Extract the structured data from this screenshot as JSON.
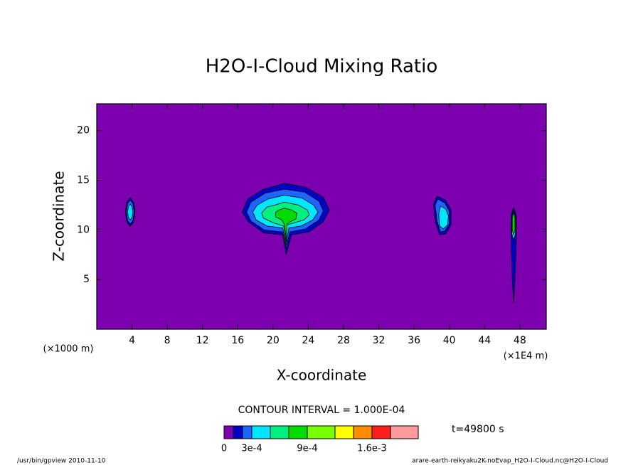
{
  "chart_data": {
    "type": "contour",
    "title": "H2O-I-Cloud Mixing Ratio",
    "x_label": "X-coordinate",
    "y_label": "Z-coordinate",
    "x_unit_left": "(×1000 m)",
    "x_unit_right": "(×1E4 m)",
    "contour_interval": "CONTOUR INTERVAL = 1.000E-04",
    "time_label": "t=49800 s",
    "footer_left": "/usr/bin/gpview  2010-11-10",
    "footer_right": "arare-earth-reikyaku2K-noEvap_H2O-I-Cloud.nc@H2O-I-Cloud",
    "xlim": [
      0,
      51
    ],
    "ylim": [
      0,
      22.7
    ],
    "xticks": [
      4,
      8,
      12,
      16,
      20,
      24,
      28,
      32,
      36,
      40,
      44,
      48
    ],
    "yticks": [
      5,
      10,
      15,
      20
    ],
    "colorbar": {
      "levels": [
        0,
        0.0001,
        0.0002,
        0.0003,
        0.0005,
        0.0007,
        0.0009,
        0.0012,
        0.0014,
        0.0016,
        0.0018,
        0.0021
      ],
      "colors": [
        "#7d00b0",
        "#0000c8",
        "#1e64ff",
        "#00e6ff",
        "#00f080",
        "#00dc00",
        "#78ff00",
        "#ffff00",
        "#ff8c00",
        "#ff1e1e",
        "#ff9b9b"
      ],
      "ticks": [
        0,
        {
          "value": 0.0003,
          "label": "3e-4"
        },
        {
          "value": 0.0009,
          "label": "9e-4"
        },
        {
          "value": 0.0016,
          "label": "1.6e-3"
        }
      ]
    },
    "regions": [
      {
        "level": 0.0001,
        "x": [
          21.3,
          23.7,
          25.7,
          26.4,
          25.7,
          24.1,
          22.1,
          21.5,
          21.1,
          18.9,
          17.1,
          16.5,
          17.1,
          18.9
        ],
        "z": [
          14.7,
          14.3,
          13.3,
          12.0,
          10.8,
          9.8,
          9.5,
          7.5,
          9.5,
          9.7,
          10.9,
          11.8,
          13.1,
          14.1
        ]
      },
      {
        "level": 0.0002,
        "x": [
          21.3,
          23.6,
          25.2,
          25.7,
          25.2,
          23.7,
          21.9,
          21.5,
          21.1,
          19.0,
          17.5,
          17.0,
          17.5,
          19.1
        ],
        "z": [
          14.1,
          13.8,
          12.9,
          11.9,
          11.0,
          10.1,
          9.8,
          8.1,
          9.8,
          10.0,
          10.9,
          11.8,
          12.8,
          13.7
        ]
      },
      {
        "level": 0.0003,
        "x": [
          21.3,
          23.3,
          24.6,
          25.1,
          24.5,
          23.2,
          21.8,
          21.5,
          21.1,
          19.3,
          18.1,
          17.7,
          18.2,
          19.4
        ],
        "z": [
          13.5,
          13.2,
          12.5,
          11.8,
          11.0,
          10.4,
          10.2,
          8.5,
          10.2,
          10.4,
          11.0,
          11.8,
          12.5,
          13.1
        ]
      },
      {
        "level": 0.0005,
        "x": [
          21.3,
          22.9,
          23.9,
          24.1,
          23.5,
          22.3,
          21.6,
          21.5,
          21.2,
          20.1,
          18.9,
          18.7,
          19.3,
          20.2
        ],
        "z": [
          12.8,
          12.5,
          12.0,
          11.5,
          11.0,
          10.7,
          10.5,
          8.8,
          10.4,
          10.7,
          11.2,
          11.7,
          12.3,
          12.5
        ]
      },
      {
        "level": 0.0007,
        "x": [
          21.3,
          22.1,
          22.7,
          22.6,
          21.9,
          21.6,
          21.5,
          21.3,
          21.0,
          20.3,
          20.3,
          20.7
        ],
        "z": [
          12.2,
          12.0,
          11.7,
          11.1,
          10.8,
          10.6,
          9.0,
          10.5,
          11.0,
          11.3,
          11.8,
          12.0
        ]
      },
      {
        "level": 0.0001,
        "x": [
          3.8,
          4.2,
          4.35,
          4.2,
          3.8,
          3.4,
          3.25,
          3.4
        ],
        "z": [
          13.25,
          12.8,
          11.8,
          10.8,
          10.35,
          10.8,
          11.8,
          12.8
        ]
      },
      {
        "level": 0.0002,
        "x": [
          3.8,
          4.1,
          4.25,
          4.1,
          3.8,
          3.5,
          3.35,
          3.5
        ],
        "z": [
          13.0,
          12.65,
          11.8,
          10.95,
          10.6,
          10.95,
          11.8,
          12.65
        ]
      },
      {
        "level": 0.0003,
        "x": [
          3.8,
          4.0,
          4.1,
          4.0,
          3.8,
          3.6,
          3.5,
          3.6
        ],
        "z": [
          12.6,
          12.35,
          11.8,
          11.25,
          11.0,
          11.25,
          11.8,
          12.35
        ]
      },
      {
        "level": 0.0001,
        "x": [
          38.6,
          39.6,
          40.2,
          40.2,
          39.6,
          38.9,
          38.4,
          38.2
        ],
        "z": [
          13.4,
          13.0,
          12.0,
          10.5,
          9.6,
          9.5,
          10.8,
          12.6
        ]
      },
      {
        "level": 0.0002,
        "x": [
          38.7,
          39.5,
          40.0,
          40.0,
          39.5,
          39.0,
          38.6,
          38.4
        ],
        "z": [
          13.1,
          12.7,
          11.9,
          10.6,
          9.9,
          9.8,
          10.9,
          12.5
        ]
      },
      {
        "level": 0.0003,
        "x": [
          39.0,
          39.6,
          39.9,
          39.8,
          39.3,
          38.9,
          38.8
        ],
        "z": [
          12.4,
          12.1,
          11.4,
          10.5,
          10.1,
          10.4,
          11.5
        ]
      },
      {
        "level": 0.0001,
        "x": [
          47.3,
          47.6,
          47.6,
          47.45,
          47.3,
          47.15,
          47.0,
          47.0
        ],
        "z": [
          12.3,
          11.5,
          9.0,
          5.0,
          2.7,
          5.0,
          9.0,
          11.5
        ]
      },
      {
        "level": 0.0003,
        "x": [
          47.3,
          47.5,
          47.5,
          47.3,
          47.1,
          47.1
        ],
        "z": [
          12.0,
          11.3,
          9.6,
          9.0,
          9.6,
          11.3
        ]
      },
      {
        "level": 0.0007,
        "x": [
          47.3,
          47.45,
          47.45,
          47.3,
          47.15,
          47.15
        ],
        "z": [
          11.8,
          11.2,
          10.0,
          9.5,
          10.0,
          11.2
        ]
      }
    ]
  }
}
